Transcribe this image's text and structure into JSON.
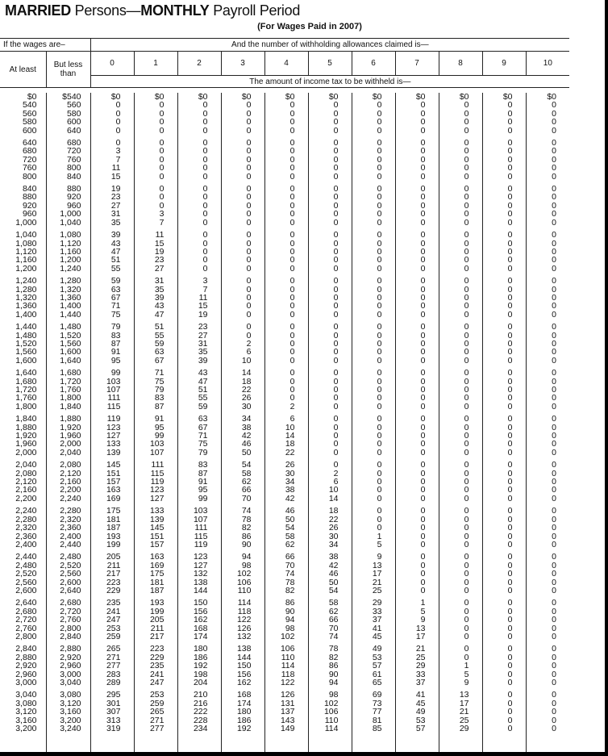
{
  "title": {
    "part1_bold": "MARRIED",
    "part2": " Persons—",
    "part3_bold": "MONTHLY",
    "part4": " Payroll Period"
  },
  "subtitle": "(For Wages Paid in 2007)",
  "header": {
    "wages_label": "If the wages are–",
    "allowances_label": "And the number of withholding allowances claimed is—",
    "at_least": "At least",
    "but_less_than": "But less than",
    "allowances": [
      "0",
      "1",
      "2",
      "3",
      "4",
      "5",
      "6",
      "7",
      "8",
      "9",
      "10"
    ],
    "amount_label": "The amount of income tax to be withheld is—"
  },
  "wages_at_least": [
    "$0",
    "540",
    "560",
    "580",
    "600",
    "640",
    "680",
    "720",
    "760",
    "800",
    "840",
    "880",
    "920",
    "960",
    "1,000",
    "1,040",
    "1,080",
    "1,120",
    "1,160",
    "1,200",
    "1,240",
    "1,280",
    "1,320",
    "1,360",
    "1,400",
    "1,440",
    "1,480",
    "1,520",
    "1,560",
    "1,600",
    "1,640",
    "1,680",
    "1,720",
    "1,760",
    "1,800",
    "1,840",
    "1,880",
    "1,920",
    "1,960",
    "2,000",
    "2,040",
    "2,080",
    "2,120",
    "2,160",
    "2,200",
    "2,240",
    "2,280",
    "2,320",
    "2,360",
    "2,400",
    "2,440",
    "2,480",
    "2,520",
    "2,560",
    "2,600",
    "2,640",
    "2,680",
    "2,720",
    "2,760",
    "2,800",
    "2,840",
    "2,880",
    "2,920",
    "2,960",
    "3,000",
    "3,040",
    "3,080",
    "3,120",
    "3,160",
    "3,200"
  ],
  "wages_but_less_than": [
    "$540",
    "560",
    "580",
    "600",
    "640",
    "680",
    "720",
    "760",
    "800",
    "840",
    "880",
    "920",
    "960",
    "1,000",
    "1,040",
    "1,080",
    "1,120",
    "1,160",
    "1,200",
    "1,240",
    "1,280",
    "1,320",
    "1,360",
    "1,400",
    "1,440",
    "1,480",
    "1,520",
    "1,560",
    "1,600",
    "1,640",
    "1,680",
    "1,720",
    "1,760",
    "1,800",
    "1,840",
    "1,880",
    "1,920",
    "1,960",
    "2,000",
    "2,040",
    "2,080",
    "2,120",
    "2,160",
    "2,200",
    "2,240",
    "2,280",
    "2,320",
    "2,360",
    "2,400",
    "2,440",
    "2,480",
    "2,520",
    "2,560",
    "2,600",
    "2,640",
    "2,680",
    "2,720",
    "2,760",
    "2,800",
    "2,840",
    "2,880",
    "2,920",
    "2,960",
    "3,000",
    "3,040",
    "3,080",
    "3,120",
    "3,160",
    "3,200",
    "3,240"
  ],
  "withholding_by_allowance": [
    [
      0,
      0,
      0,
      0,
      0,
      0,
      3,
      7,
      11,
      15,
      19,
      23,
      27,
      31,
      35,
      39,
      43,
      47,
      51,
      55,
      59,
      63,
      67,
      71,
      75,
      79,
      83,
      87,
      91,
      95,
      99,
      103,
      107,
      111,
      115,
      119,
      123,
      127,
      133,
      139,
      145,
      151,
      157,
      163,
      169,
      175,
      181,
      187,
      193,
      199,
      205,
      211,
      217,
      223,
      229,
      235,
      241,
      247,
      253,
      259,
      265,
      271,
      277,
      283,
      289,
      295,
      301,
      307,
      313,
      319
    ],
    [
      0,
      0,
      0,
      0,
      0,
      0,
      0,
      0,
      0,
      0,
      0,
      0,
      0,
      3,
      7,
      11,
      15,
      19,
      23,
      27,
      31,
      35,
      39,
      43,
      47,
      51,
      55,
      59,
      63,
      67,
      71,
      75,
      79,
      83,
      87,
      91,
      95,
      99,
      103,
      107,
      111,
      115,
      119,
      123,
      127,
      133,
      139,
      145,
      151,
      157,
      163,
      169,
      175,
      181,
      187,
      193,
      199,
      205,
      211,
      217,
      223,
      229,
      235,
      241,
      247,
      253,
      259,
      265,
      271,
      277
    ],
    [
      0,
      0,
      0,
      0,
      0,
      0,
      0,
      0,
      0,
      0,
      0,
      0,
      0,
      0,
      0,
      0,
      0,
      0,
      0,
      0,
      3,
      7,
      11,
      15,
      19,
      23,
      27,
      31,
      35,
      39,
      43,
      47,
      51,
      55,
      59,
      63,
      67,
      71,
      75,
      79,
      83,
      87,
      91,
      95,
      99,
      103,
      107,
      111,
      115,
      119,
      123,
      127,
      132,
      138,
      144,
      150,
      156,
      162,
      168,
      174,
      180,
      186,
      192,
      198,
      204,
      210,
      216,
      222,
      228,
      234
    ],
    [
      0,
      0,
      0,
      0,
      0,
      0,
      0,
      0,
      0,
      0,
      0,
      0,
      0,
      0,
      0,
      0,
      0,
      0,
      0,
      0,
      0,
      0,
      0,
      0,
      0,
      0,
      0,
      2,
      6,
      10,
      14,
      18,
      22,
      26,
      30,
      34,
      38,
      42,
      46,
      50,
      54,
      58,
      62,
      66,
      70,
      74,
      78,
      82,
      86,
      90,
      94,
      98,
      102,
      106,
      110,
      114,
      118,
      122,
      126,
      132,
      138,
      144,
      150,
      156,
      162,
      168,
      174,
      180,
      186,
      192
    ],
    [
      0,
      0,
      0,
      0,
      0,
      0,
      0,
      0,
      0,
      0,
      0,
      0,
      0,
      0,
      0,
      0,
      0,
      0,
      0,
      0,
      0,
      0,
      0,
      0,
      0,
      0,
      0,
      0,
      0,
      0,
      0,
      0,
      0,
      0,
      2,
      6,
      10,
      14,
      18,
      22,
      26,
      30,
      34,
      38,
      42,
      46,
      50,
      54,
      58,
      62,
      66,
      70,
      74,
      78,
      82,
      86,
      90,
      94,
      98,
      102,
      106,
      110,
      114,
      118,
      122,
      126,
      131,
      137,
      143,
      149
    ],
    [
      0,
      0,
      0,
      0,
      0,
      0,
      0,
      0,
      0,
      0,
      0,
      0,
      0,
      0,
      0,
      0,
      0,
      0,
      0,
      0,
      0,
      0,
      0,
      0,
      0,
      0,
      0,
      0,
      0,
      0,
      0,
      0,
      0,
      0,
      0,
      0,
      0,
      0,
      0,
      0,
      0,
      2,
      6,
      10,
      14,
      18,
      22,
      26,
      30,
      34,
      38,
      42,
      46,
      50,
      54,
      58,
      62,
      66,
      70,
      74,
      78,
      82,
      86,
      90,
      94,
      98,
      102,
      106,
      110,
      114
    ],
    [
      0,
      0,
      0,
      0,
      0,
      0,
      0,
      0,
      0,
      0,
      0,
      0,
      0,
      0,
      0,
      0,
      0,
      0,
      0,
      0,
      0,
      0,
      0,
      0,
      0,
      0,
      0,
      0,
      0,
      0,
      0,
      0,
      0,
      0,
      0,
      0,
      0,
      0,
      0,
      0,
      0,
      0,
      0,
      0,
      0,
      0,
      0,
      0,
      1,
      5,
      9,
      13,
      17,
      21,
      25,
      29,
      33,
      37,
      41,
      45,
      49,
      53,
      57,
      61,
      65,
      69,
      73,
      77,
      81,
      85
    ],
    [
      0,
      0,
      0,
      0,
      0,
      0,
      0,
      0,
      0,
      0,
      0,
      0,
      0,
      0,
      0,
      0,
      0,
      0,
      0,
      0,
      0,
      0,
      0,
      0,
      0,
      0,
      0,
      0,
      0,
      0,
      0,
      0,
      0,
      0,
      0,
      0,
      0,
      0,
      0,
      0,
      0,
      0,
      0,
      0,
      0,
      0,
      0,
      0,
      0,
      0,
      0,
      0,
      0,
      0,
      0,
      1,
      5,
      9,
      13,
      17,
      21,
      25,
      29,
      33,
      37,
      41,
      45,
      49,
      53,
      57
    ],
    [
      0,
      0,
      0,
      0,
      0,
      0,
      0,
      0,
      0,
      0,
      0,
      0,
      0,
      0,
      0,
      0,
      0,
      0,
      0,
      0,
      0,
      0,
      0,
      0,
      0,
      0,
      0,
      0,
      0,
      0,
      0,
      0,
      0,
      0,
      0,
      0,
      0,
      0,
      0,
      0,
      0,
      0,
      0,
      0,
      0,
      0,
      0,
      0,
      0,
      0,
      0,
      0,
      0,
      0,
      0,
      0,
      0,
      0,
      0,
      0,
      0,
      0,
      1,
      5,
      9,
      13,
      17,
      21,
      25,
      29
    ],
    [
      0,
      0,
      0,
      0,
      0,
      0,
      0,
      0,
      0,
      0,
      0,
      0,
      0,
      0,
      0,
      0,
      0,
      0,
      0,
      0,
      0,
      0,
      0,
      0,
      0,
      0,
      0,
      0,
      0,
      0,
      0,
      0,
      0,
      0,
      0,
      0,
      0,
      0,
      0,
      0,
      0,
      0,
      0,
      0,
      0,
      0,
      0,
      0,
      0,
      0,
      0,
      0,
      0,
      0,
      0,
      0,
      0,
      0,
      0,
      0,
      0,
      0,
      0,
      0,
      0,
      0,
      0,
      0,
      0,
      0
    ],
    [
      0,
      0,
      0,
      0,
      0,
      0,
      0,
      0,
      0,
      0,
      0,
      0,
      0,
      0,
      0,
      0,
      0,
      0,
      0,
      0,
      0,
      0,
      0,
      0,
      0,
      0,
      0,
      0,
      0,
      0,
      0,
      0,
      0,
      0,
      0,
      0,
      0,
      0,
      0,
      0,
      0,
      0,
      0,
      0,
      0,
      0,
      0,
      0,
      0,
      0,
      0,
      0,
      0,
      0,
      0,
      0,
      0,
      0,
      0,
      0,
      0,
      0,
      0,
      0,
      0,
      0,
      0,
      0,
      0,
      0
    ]
  ]
}
